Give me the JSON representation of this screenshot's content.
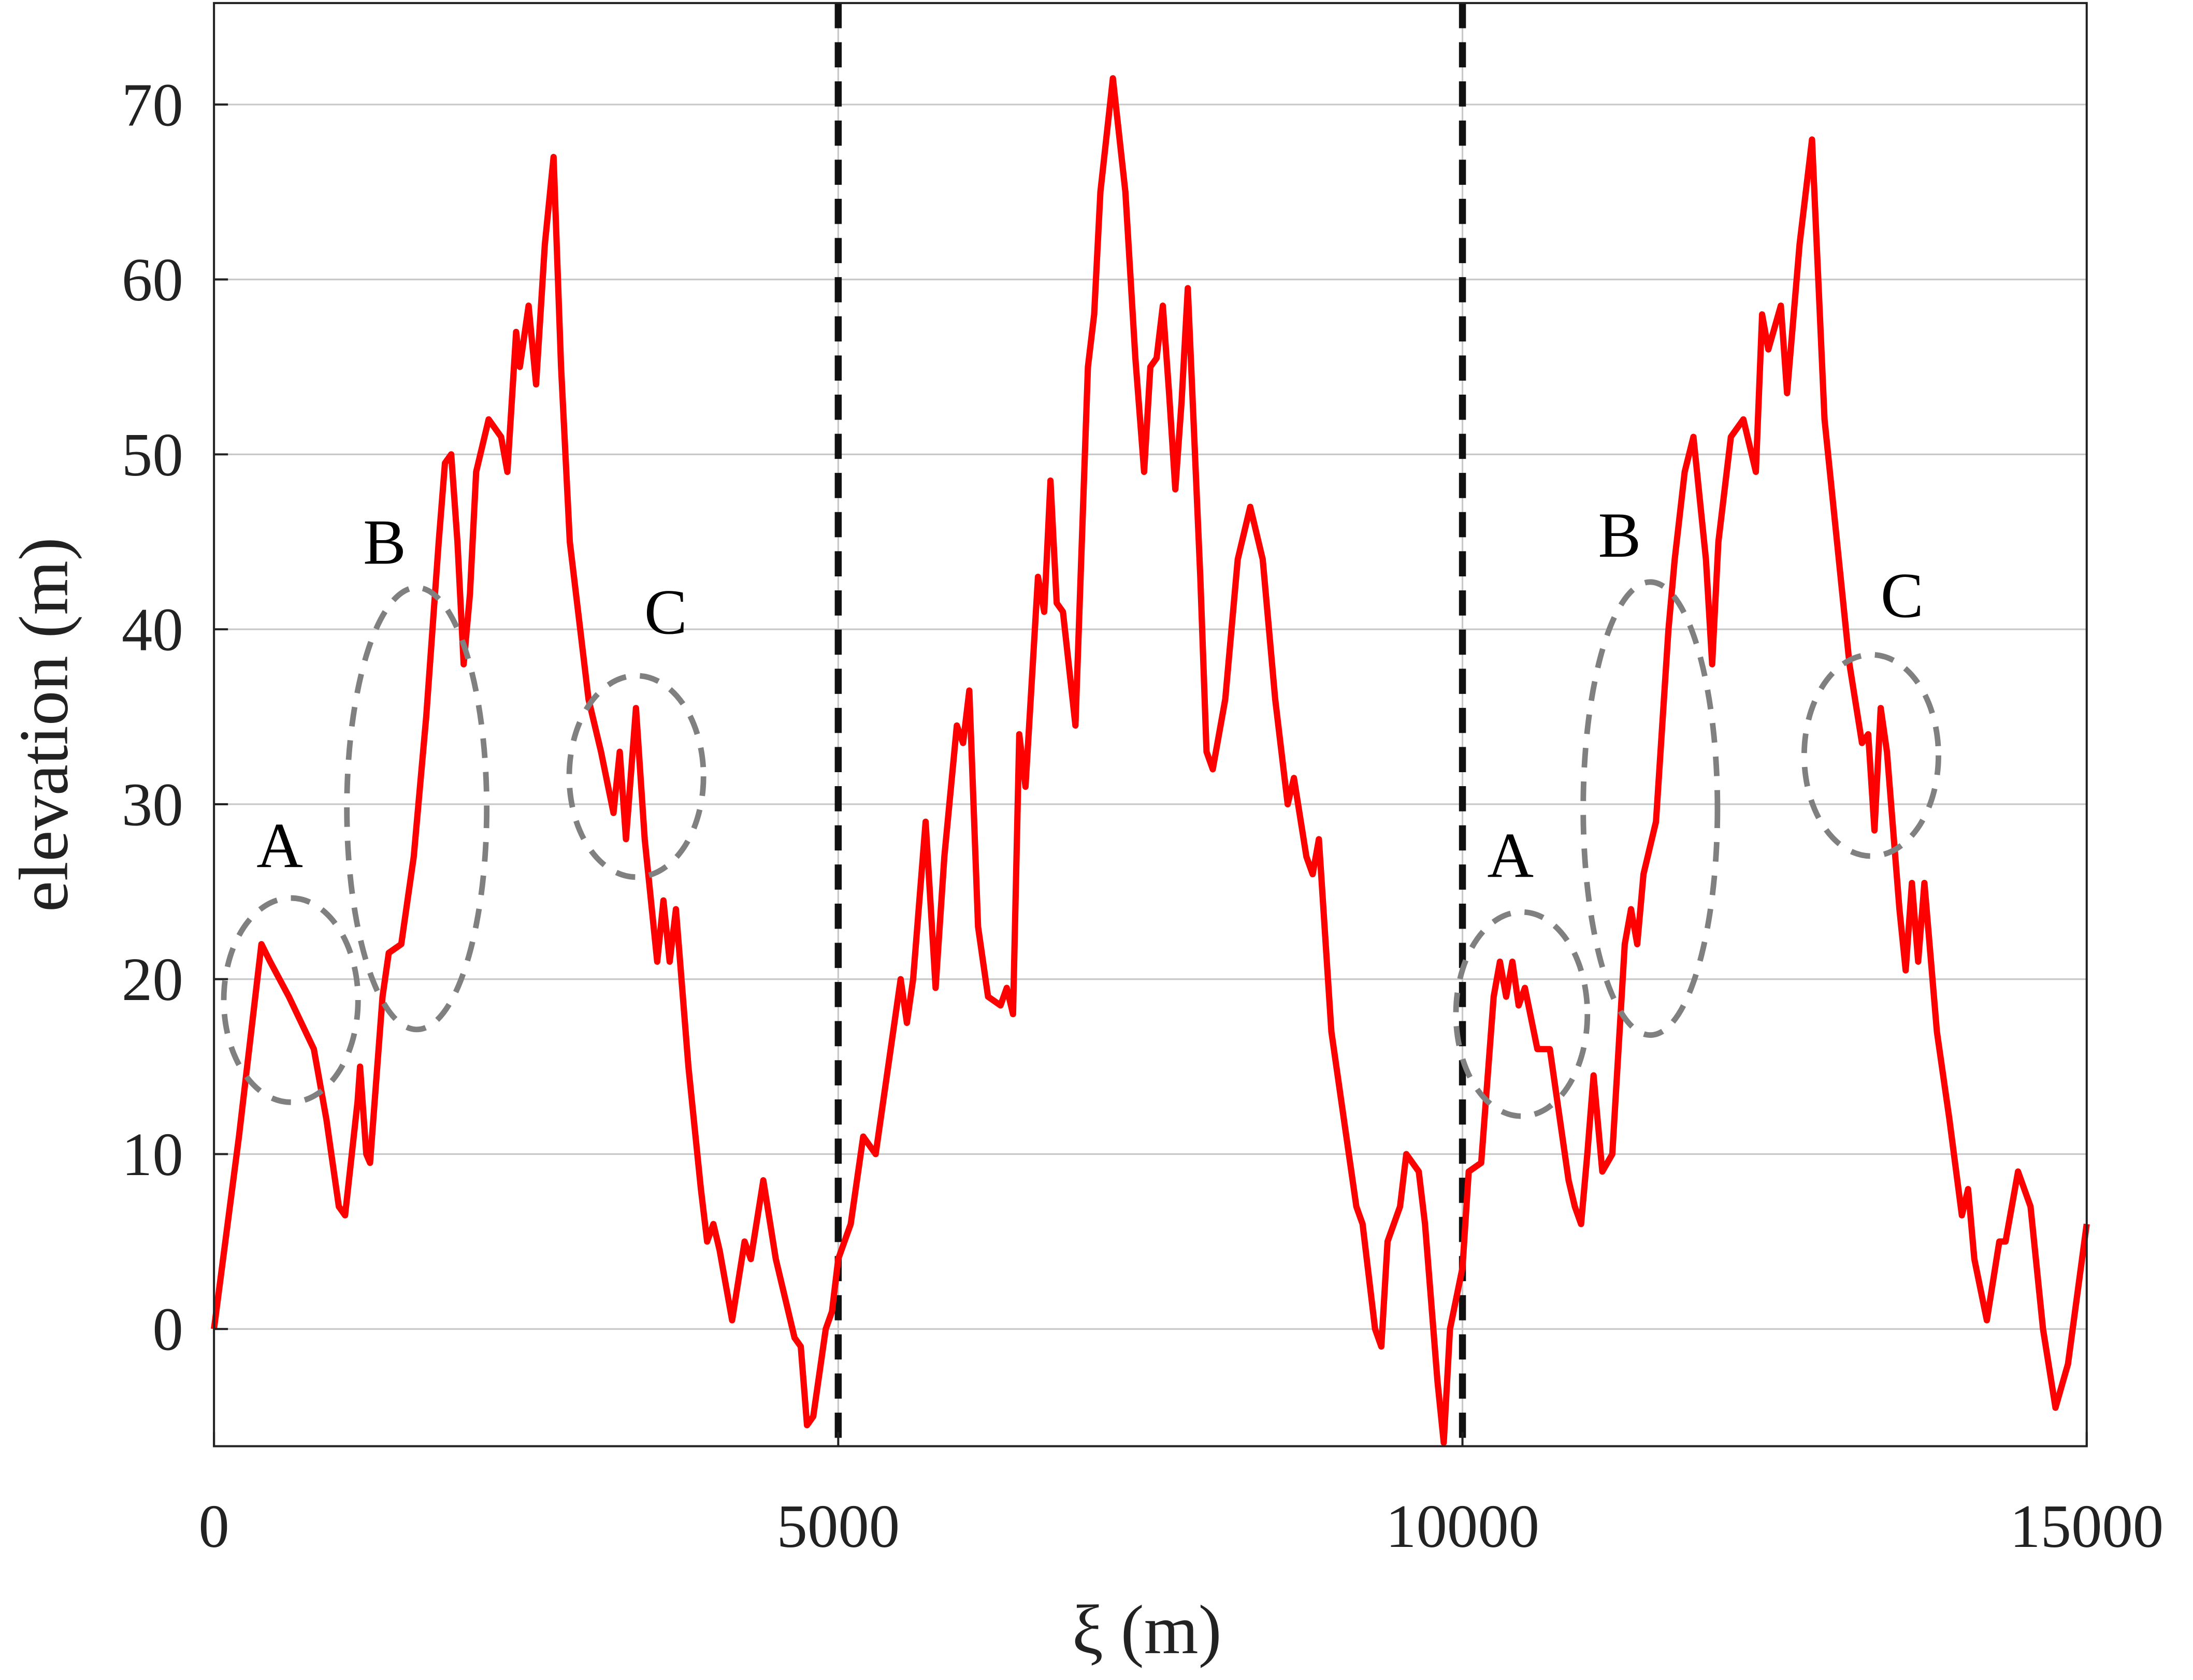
{
  "chart_data": {
    "type": "line",
    "xlabel": "ξ (m)",
    "ylabel": "elevation (m)",
    "xlim": [
      0,
      15000
    ],
    "ylim": [
      -6.7,
      75.8
    ],
    "xticks": [
      0,
      5000,
      10000,
      15000
    ],
    "yticks": [
      0,
      10,
      20,
      30,
      40,
      50,
      60,
      70
    ],
    "grid": true,
    "color": "#ff0000",
    "vlines": [
      5000,
      10000
    ],
    "annotations": [
      "A",
      "B",
      "C",
      "A",
      "B",
      "C"
    ],
    "x": [
      0,
      200,
      380,
      450,
      600,
      800,
      900,
      1000,
      1050,
      1150,
      1170,
      1220,
      1250,
      1350,
      1400,
      1500,
      1600,
      1700,
      1800,
      1850,
      1900,
      1950,
      2000,
      2050,
      2100,
      2200,
      2300,
      2350,
      2420,
      2450,
      2520,
      2580,
      2650,
      2720,
      2780,
      2850,
      3000,
      3100,
      3200,
      3250,
      3300,
      3380,
      3450,
      3550,
      3600,
      3650,
      3700,
      3800,
      3900,
      3950,
      4000,
      4050,
      4150,
      4250,
      4300,
      4400,
      4500,
      4650,
      4700,
      4750,
      4800,
      4900,
      4950,
      5000,
      5100,
      5200,
      5300,
      5400,
      5500,
      5550,
      5600,
      5700,
      5780,
      5850,
      5950,
      6000,
      6050,
      6120,
      6200,
      6300,
      6350,
      6400,
      6450,
      6500,
      6600,
      6650,
      6700,
      6750,
      6800,
      6900,
      7000,
      7050,
      7100,
      7200,
      7300,
      7380,
      7450,
      7500,
      7550,
      7600,
      7650,
      7700,
      7750,
      7800,
      7900,
      7950,
      8000,
      8100,
      8200,
      8300,
      8400,
      8500,
      8600,
      8650,
      8750,
      8800,
      8850,
      8950,
      9050,
      9150,
      9200,
      9300,
      9350,
      9400,
      9500,
      9550,
      9650,
      9700,
      9800,
      9850,
      9900,
      10000,
      10050,
      10150,
      10250,
      10300,
      10350,
      10400,
      10450,
      10500,
      10600,
      10700,
      10780,
      10850,
      10900,
      10950,
      11000,
      11050,
      11120,
      11200,
      11300,
      11350,
      11400,
      11450,
      11550,
      11650,
      11700,
      11780,
      11850,
      11950,
      12000,
      12050,
      12150,
      12250,
      12350,
      12400,
      12450,
      12550,
      12600,
      12700,
      12800,
      12900,
      13000,
      13100,
      13200,
      13250,
      13300,
      13350,
      13400,
      13500,
      13550,
      13600,
      13650,
      13700,
      13800,
      13900,
      14000,
      14050,
      14100,
      14200,
      14300,
      14350,
      14450,
      14550,
      14650,
      14750,
      14850,
      15000
    ],
    "values": [
      0,
      11,
      22,
      21,
      19,
      16,
      12,
      7,
      6.5,
      13,
      15,
      10,
      9.5,
      19,
      21.5,
      22,
      27,
      35,
      45,
      49.5,
      50,
      45,
      38,
      42,
      49,
      52,
      51,
      49,
      57,
      55,
      58.5,
      54,
      62,
      67,
      55,
      45,
      36,
      33,
      29.5,
      33,
      28,
      35.5,
      28,
      21,
      24.5,
      21,
      24,
      15,
      8,
      5,
      6,
      4.5,
      0.5,
      5,
      4,
      8.5,
      4,
      -0.5,
      -1,
      -5.5,
      -5,
      0,
      1,
      4,
      6,
      11,
      10,
      15,
      20,
      17.5,
      20,
      29,
      19.5,
      27,
      34.5,
      33.5,
      36.5,
      23,
      19,
      18.5,
      19.5,
      18,
      34,
      31,
      43,
      41,
      48.5,
      41.5,
      41,
      34.5,
      55,
      58,
      65,
      71.5,
      65,
      55.5,
      49,
      55,
      55.5,
      58.5,
      53.5,
      48,
      53,
      59.5,
      43,
      33,
      32,
      36,
      44,
      47,
      44,
      36,
      30,
      31.5,
      27,
      26,
      28,
      17,
      12,
      7,
      6,
      0,
      -1,
      5,
      7,
      10,
      9,
      6,
      -3,
      -6.5,
      0,
      3.5,
      9,
      9.5,
      19,
      21,
      19,
      21,
      18.5,
      19.5,
      16,
      16,
      12,
      8.5,
      7,
      6,
      10,
      14.5,
      9,
      10,
      22,
      24,
      22,
      26,
      29,
      40,
      44,
      49,
      51,
      44,
      38,
      45,
      51,
      52,
      49,
      58,
      56,
      58.5,
      53.5,
      62,
      68,
      52,
      45,
      38,
      33.5,
      34,
      28.5,
      35.5,
      33,
      24,
      20.5,
      25.5,
      21,
      25.5,
      17,
      12,
      6.5,
      8,
      4,
      0.5,
      5,
      5,
      9,
      7,
      0,
      -4.5,
      -2,
      6
    ]
  }
}
